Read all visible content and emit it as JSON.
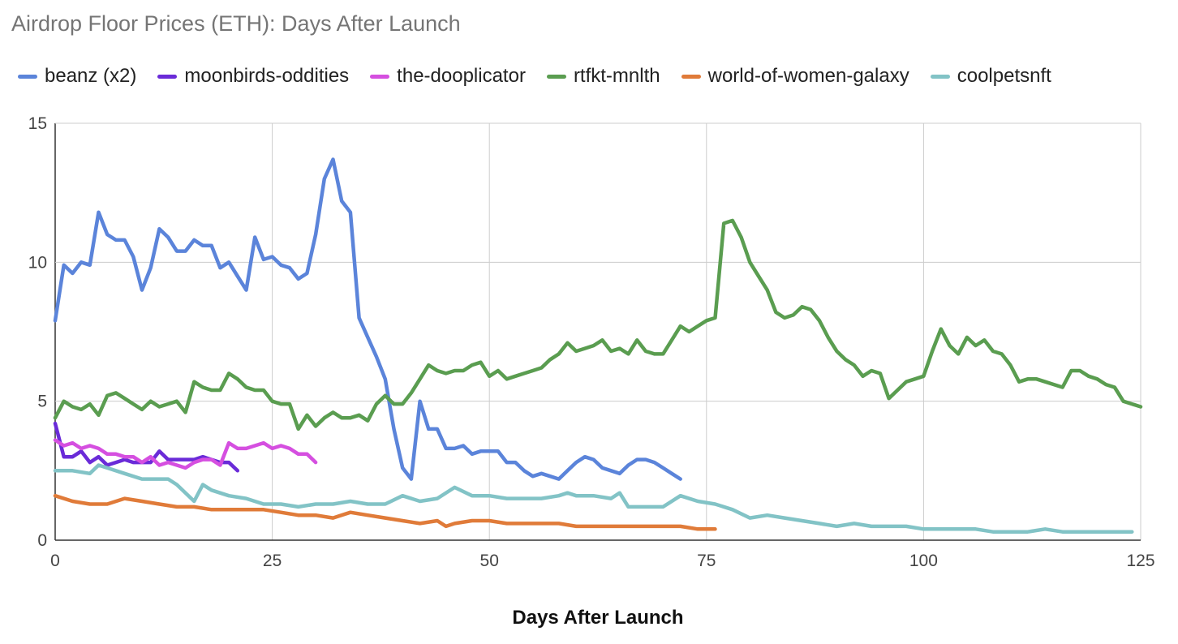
{
  "chart_data": {
    "type": "line",
    "title": "Airdrop Floor Prices (ETH): Days After Launch",
    "xlabel": "Days After Launch",
    "ylabel": "",
    "xlim": [
      0,
      125
    ],
    "ylim": [
      0,
      15
    ],
    "x_ticks": [
      "0",
      "25",
      "50",
      "75",
      "100",
      "125"
    ],
    "y_ticks": [
      "0",
      "5",
      "10",
      "15"
    ],
    "grid": true,
    "legend_position": "top",
    "series": [
      {
        "name": "beanz (x2)",
        "color": "#5b84da",
        "x": [
          0,
          1,
          2,
          3,
          4,
          5,
          6,
          7,
          8,
          9,
          10,
          11,
          12,
          13,
          14,
          15,
          16,
          17,
          18,
          19,
          20,
          21,
          22,
          23,
          24,
          25,
          26,
          27,
          28,
          29,
          30,
          31,
          32,
          33,
          34,
          35,
          36,
          37,
          38,
          39,
          40,
          41,
          42,
          43,
          44,
          45,
          46,
          47,
          48,
          49,
          50,
          51,
          52,
          53,
          54,
          55,
          56,
          57,
          58,
          59,
          60,
          61,
          62,
          63,
          64,
          65,
          66,
          67,
          68,
          69,
          70,
          71,
          72
        ],
        "values": [
          7.9,
          9.9,
          9.6,
          10.0,
          9.9,
          11.8,
          11.0,
          10.8,
          10.8,
          10.2,
          9.0,
          9.8,
          11.2,
          10.9,
          10.4,
          10.4,
          10.8,
          10.6,
          10.6,
          9.8,
          10.0,
          9.5,
          9.0,
          10.9,
          10.1,
          10.2,
          9.9,
          9.8,
          9.4,
          9.6,
          11.0,
          13.0,
          13.7,
          12.2,
          11.8,
          8.0,
          7.3,
          6.6,
          5.8,
          4.0,
          2.6,
          2.2,
          5.0,
          4.0,
          4.0,
          3.3,
          3.3,
          3.4,
          3.1,
          3.2,
          3.2,
          3.2,
          2.8,
          2.8,
          2.5,
          2.3,
          2.4,
          2.3,
          2.2,
          2.5,
          2.8,
          3.0,
          2.9,
          2.6,
          2.5,
          2.4,
          2.7,
          2.9,
          2.9,
          2.8,
          2.6,
          2.4,
          2.2
        ]
      },
      {
        "name": "moonbirds-oddities",
        "color": "#6a2bd8",
        "x": [
          0,
          1,
          2,
          3,
          4,
          5,
          6,
          7,
          8,
          9,
          10,
          11,
          12,
          13,
          14,
          15,
          16,
          17,
          18,
          19,
          20,
          21
        ],
        "values": [
          4.2,
          3.0,
          3.0,
          3.2,
          2.8,
          3.0,
          2.7,
          2.8,
          2.9,
          2.8,
          2.8,
          2.8,
          3.2,
          2.9,
          2.9,
          2.9,
          2.9,
          3.0,
          2.9,
          2.8,
          2.8,
          2.5
        ]
      },
      {
        "name": "the-dooplicator",
        "color": "#d54fe0",
        "x": [
          0,
          1,
          2,
          3,
          4,
          5,
          6,
          7,
          8,
          9,
          10,
          11,
          12,
          13,
          14,
          15,
          16,
          17,
          18,
          19,
          20,
          21,
          22,
          23,
          24,
          25,
          26,
          27,
          28,
          29,
          30
        ],
        "values": [
          3.6,
          3.4,
          3.5,
          3.3,
          3.4,
          3.3,
          3.1,
          3.1,
          3.0,
          3.0,
          2.8,
          3.0,
          2.7,
          2.8,
          2.7,
          2.6,
          2.8,
          2.9,
          2.9,
          2.7,
          3.5,
          3.3,
          3.3,
          3.4,
          3.5,
          3.3,
          3.4,
          3.3,
          3.1,
          3.1,
          2.8
        ]
      },
      {
        "name": "rtfkt-mnlth",
        "color": "#5a9d50",
        "x": [
          0,
          1,
          2,
          3,
          4,
          5,
          6,
          7,
          8,
          9,
          10,
          11,
          12,
          13,
          14,
          15,
          16,
          17,
          18,
          19,
          20,
          21,
          22,
          23,
          24,
          25,
          26,
          27,
          28,
          29,
          30,
          31,
          32,
          33,
          34,
          35,
          36,
          37,
          38,
          39,
          40,
          41,
          42,
          43,
          44,
          45,
          46,
          47,
          48,
          49,
          50,
          51,
          52,
          53,
          54,
          55,
          56,
          57,
          58,
          59,
          60,
          61,
          62,
          63,
          64,
          65,
          66,
          67,
          68,
          69,
          70,
          71,
          72,
          73,
          74,
          75,
          76,
          77,
          78,
          79,
          80,
          81,
          82,
          83,
          84,
          85,
          86,
          87,
          88,
          89,
          90,
          91,
          92,
          93,
          94,
          95,
          96,
          97,
          98,
          99,
          100,
          101,
          102,
          103,
          104,
          105,
          106,
          107,
          108,
          109,
          110,
          111,
          112,
          113,
          114,
          115,
          116,
          117,
          118,
          119,
          120,
          121,
          122,
          123,
          124,
          125
        ],
        "values": [
          4.4,
          5.0,
          4.8,
          4.7,
          4.9,
          4.5,
          5.2,
          5.3,
          5.1,
          4.9,
          4.7,
          5.0,
          4.8,
          4.9,
          5.0,
          4.6,
          5.7,
          5.5,
          5.4,
          5.4,
          6.0,
          5.8,
          5.5,
          5.4,
          5.4,
          5.0,
          4.9,
          4.9,
          4.0,
          4.5,
          4.1,
          4.4,
          4.6,
          4.4,
          4.4,
          4.5,
          4.3,
          4.9,
          5.2,
          4.9,
          4.9,
          5.3,
          5.8,
          6.3,
          6.1,
          6.0,
          6.1,
          6.1,
          6.3,
          6.4,
          5.9,
          6.1,
          5.8,
          5.9,
          6.0,
          6.1,
          6.2,
          6.5,
          6.7,
          7.1,
          6.8,
          6.9,
          7.0,
          7.2,
          6.8,
          6.9,
          6.7,
          7.2,
          6.8,
          6.7,
          6.7,
          7.2,
          7.7,
          7.5,
          7.7,
          7.9,
          8.0,
          11.4,
          11.5,
          10.9,
          10.0,
          9.5,
          9.0,
          8.2,
          8.0,
          8.1,
          8.4,
          8.3,
          7.9,
          7.3,
          6.8,
          6.5,
          6.3,
          5.9,
          6.1,
          6.0,
          5.1,
          5.4,
          5.7,
          5.8,
          5.9,
          6.8,
          7.6,
          7.0,
          6.7,
          7.3,
          7.0,
          7.2,
          6.8,
          6.7,
          6.3,
          5.7,
          5.8,
          5.8,
          5.7,
          5.6,
          5.5,
          6.1,
          6.1,
          5.9,
          5.8,
          5.6,
          5.5,
          5.0,
          4.9,
          4.8
        ]
      },
      {
        "name": "world-of-women-galaxy",
        "color": "#e07b39",
        "x": [
          0,
          2,
          4,
          6,
          8,
          10,
          12,
          14,
          16,
          18,
          20,
          22,
          24,
          26,
          28,
          30,
          32,
          34,
          36,
          38,
          40,
          42,
          44,
          45,
          46,
          48,
          50,
          52,
          54,
          56,
          58,
          60,
          62,
          64,
          66,
          68,
          70,
          72,
          74,
          76
        ],
        "values": [
          1.6,
          1.4,
          1.3,
          1.3,
          1.5,
          1.4,
          1.3,
          1.2,
          1.2,
          1.1,
          1.1,
          1.1,
          1.1,
          1.0,
          0.9,
          0.9,
          0.8,
          1.0,
          0.9,
          0.8,
          0.7,
          0.6,
          0.7,
          0.5,
          0.6,
          0.7,
          0.7,
          0.6,
          0.6,
          0.6,
          0.6,
          0.5,
          0.5,
          0.5,
          0.5,
          0.5,
          0.5,
          0.5,
          0.4,
          0.4
        ]
      },
      {
        "name": "coolpetsnft",
        "color": "#82c3c6",
        "x": [
          0,
          2,
          4,
          5,
          6,
          8,
          10,
          12,
          13,
          14,
          16,
          17,
          18,
          20,
          22,
          24,
          26,
          28,
          30,
          32,
          34,
          36,
          38,
          40,
          42,
          44,
          46,
          48,
          50,
          52,
          54,
          56,
          58,
          59,
          60,
          62,
          64,
          65,
          66,
          68,
          70,
          72,
          74,
          76,
          78,
          80,
          82,
          84,
          86,
          88,
          90,
          92,
          94,
          96,
          98,
          100,
          102,
          104,
          106,
          108,
          110,
          112,
          114,
          116,
          118,
          120,
          122,
          124
        ],
        "values": [
          2.5,
          2.5,
          2.4,
          2.7,
          2.6,
          2.4,
          2.2,
          2.2,
          2.2,
          2.0,
          1.4,
          2.0,
          1.8,
          1.6,
          1.5,
          1.3,
          1.3,
          1.2,
          1.3,
          1.3,
          1.4,
          1.3,
          1.3,
          1.6,
          1.4,
          1.5,
          1.9,
          1.6,
          1.6,
          1.5,
          1.5,
          1.5,
          1.6,
          1.7,
          1.6,
          1.6,
          1.5,
          1.7,
          1.2,
          1.2,
          1.2,
          1.6,
          1.4,
          1.3,
          1.1,
          0.8,
          0.9,
          0.8,
          0.7,
          0.6,
          0.5,
          0.6,
          0.5,
          0.5,
          0.5,
          0.4,
          0.4,
          0.4,
          0.4,
          0.3,
          0.3,
          0.3,
          0.4,
          0.3,
          0.3,
          0.3,
          0.3,
          0.3
        ]
      }
    ]
  }
}
